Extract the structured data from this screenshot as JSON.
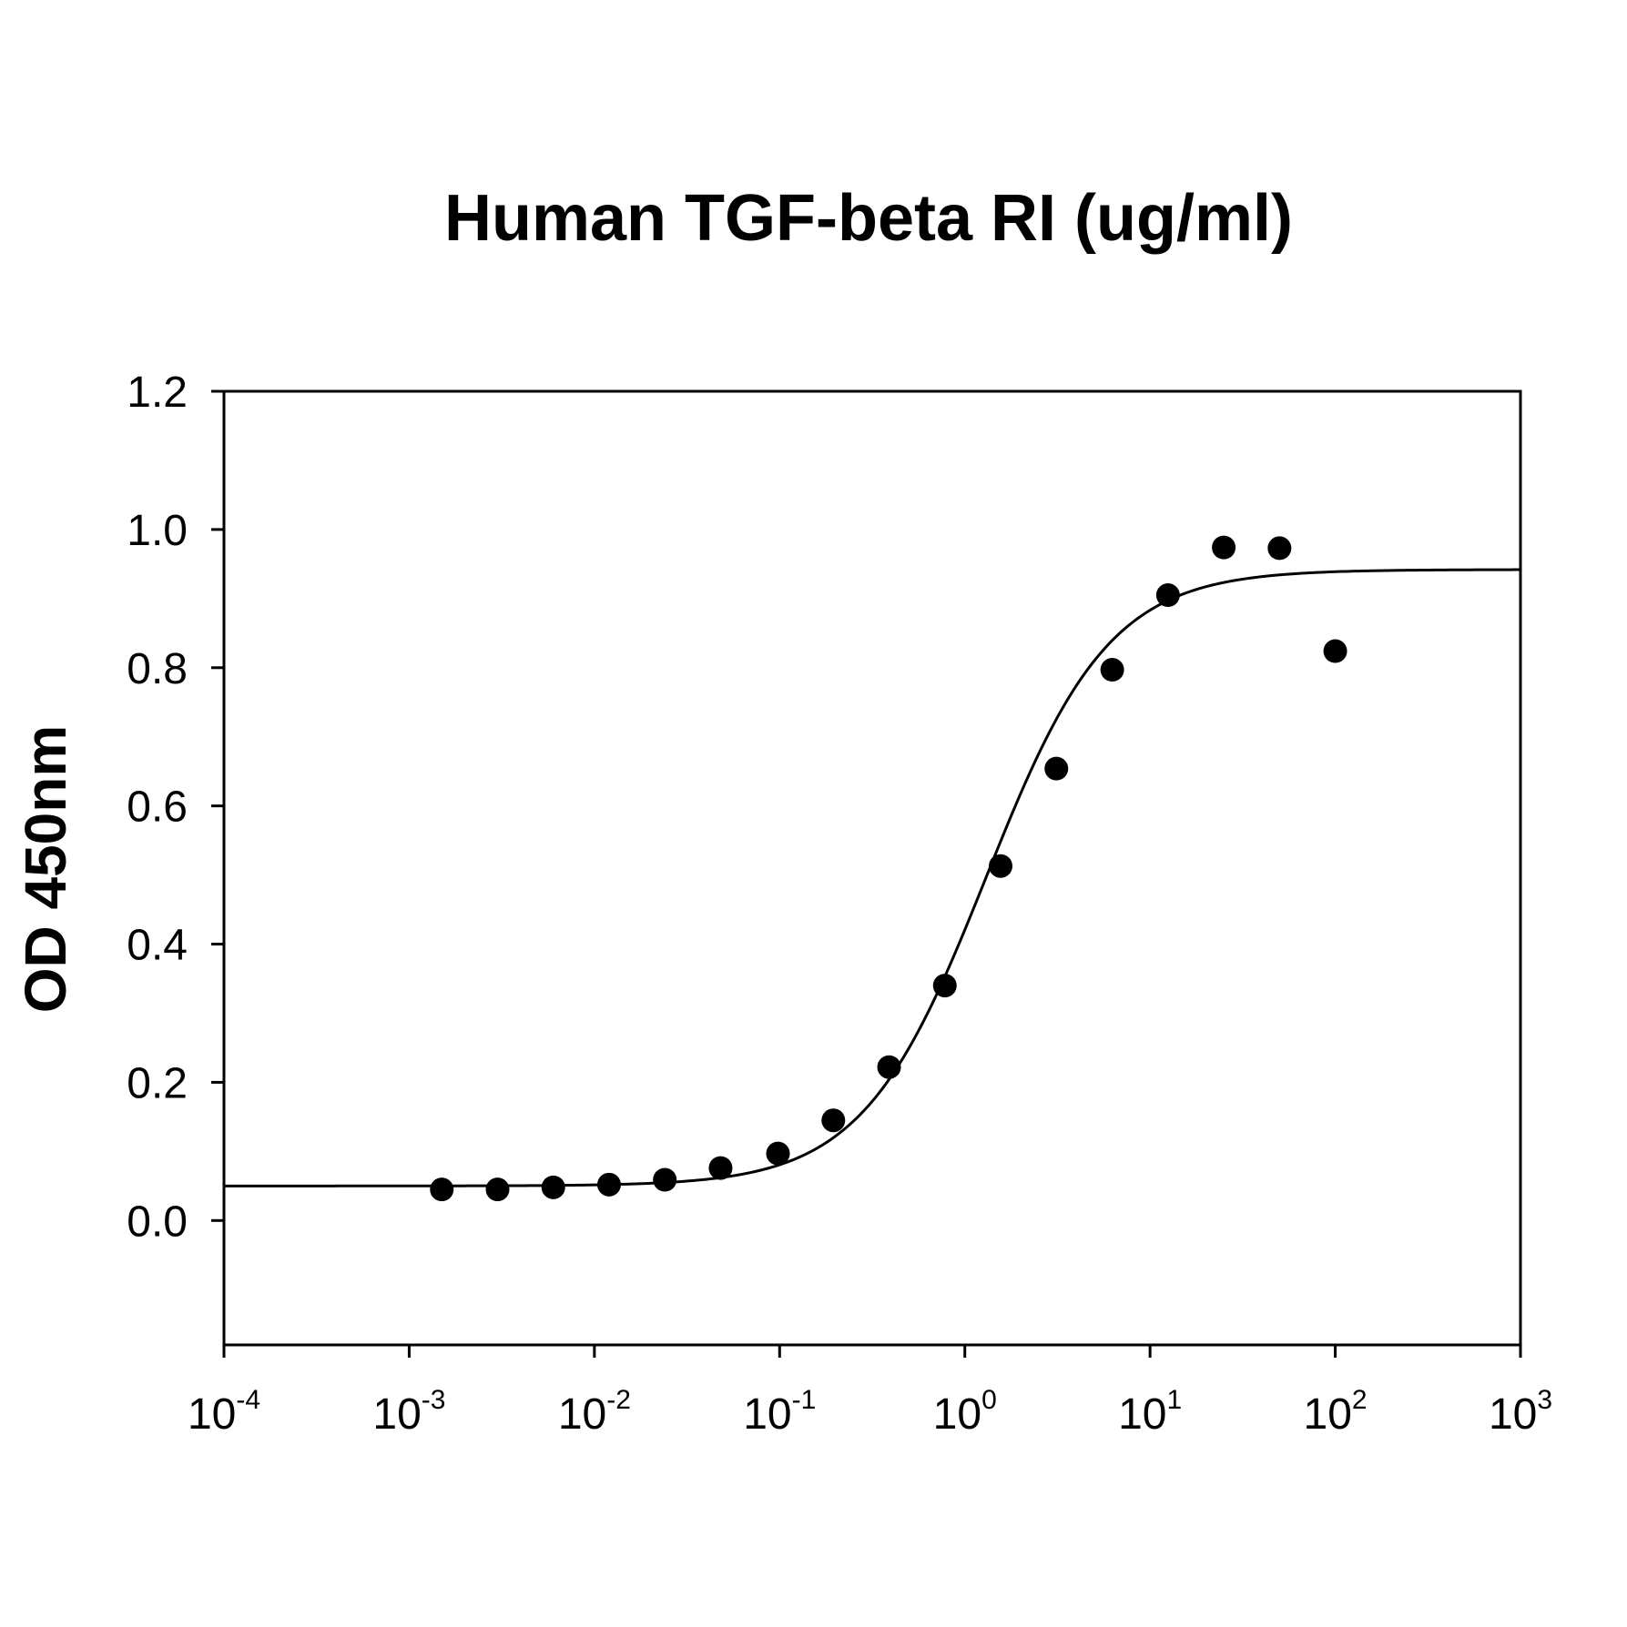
{
  "chart_data": {
    "type": "scatter",
    "title": "Human TGF-beta RI (ug/ml)",
    "ylabel": "OD 450nm",
    "xlabel": "",
    "x_scale": "log",
    "xlim": [
      0.0001,
      1000
    ],
    "ylim": [
      -0.18,
      1.2
    ],
    "x_ticks": [
      {
        "base": "10",
        "exp": "-4",
        "value": 0.0001
      },
      {
        "base": "10",
        "exp": "-3",
        "value": 0.001
      },
      {
        "base": "10",
        "exp": "-2",
        "value": 0.01
      },
      {
        "base": "10",
        "exp": "-1",
        "value": 0.1
      },
      {
        "base": "10",
        "exp": "0",
        "value": 1
      },
      {
        "base": "10",
        "exp": "1",
        "value": 10
      },
      {
        "base": "10",
        "exp": "2",
        "value": 100
      },
      {
        "base": "10",
        "exp": "3",
        "value": 1000
      }
    ],
    "y_ticks": [
      {
        "label": "1.2",
        "value": 1.2
      },
      {
        "label": "1.0",
        "value": 1.0
      },
      {
        "label": "0.8",
        "value": 0.8
      },
      {
        "label": "0.6",
        "value": 0.6
      },
      {
        "label": "0.4",
        "value": 0.4
      },
      {
        "label": "0.2",
        "value": 0.2
      },
      {
        "label": "0.0",
        "value": 0.0
      }
    ],
    "grid": false,
    "series": [
      {
        "points": [
          {
            "x": 0.0015,
            "y": 0.045
          },
          {
            "x": 0.003,
            "y": 0.045
          },
          {
            "x": 0.006,
            "y": 0.048
          },
          {
            "x": 0.012,
            "y": 0.052
          },
          {
            "x": 0.024,
            "y": 0.059
          },
          {
            "x": 0.048,
            "y": 0.076
          },
          {
            "x": 0.098,
            "y": 0.097
          },
          {
            "x": 0.195,
            "y": 0.145
          },
          {
            "x": 0.39,
            "y": 0.222
          },
          {
            "x": 0.78,
            "y": 0.34
          },
          {
            "x": 1.56,
            "y": 0.513
          },
          {
            "x": 3.12,
            "y": 0.654
          },
          {
            "x": 6.25,
            "y": 0.797
          },
          {
            "x": 12.5,
            "y": 0.905
          },
          {
            "x": 25,
            "y": 0.974
          },
          {
            "x": 50,
            "y": 0.973
          },
          {
            "x": 100,
            "y": 0.824
          }
        ]
      }
    ],
    "fit": {
      "model": "4PL",
      "bottom": 0.05,
      "top": 0.942,
      "ec50": 1.3,
      "hill": 1.3
    }
  }
}
